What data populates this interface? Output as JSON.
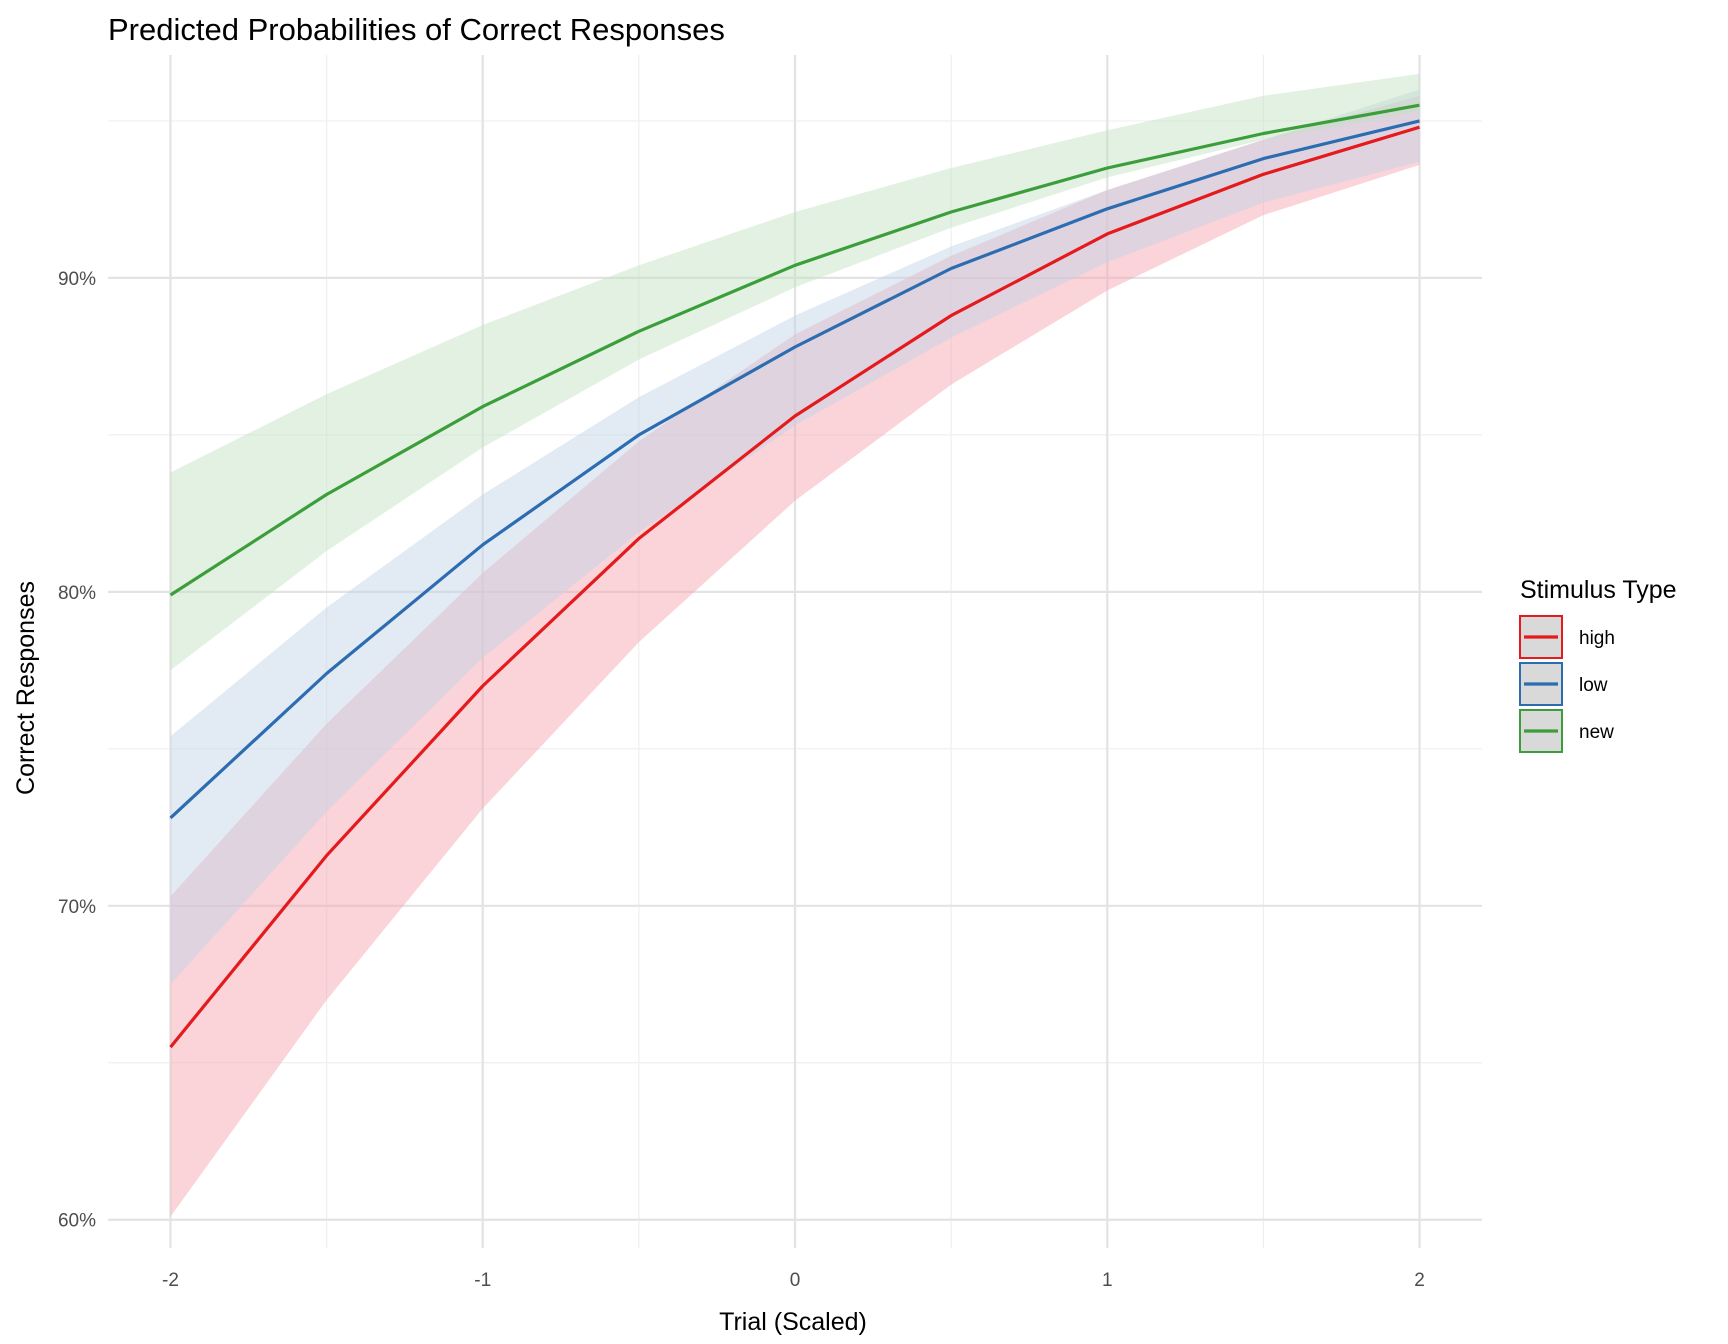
{
  "chart_data": {
    "type": "line",
    "title": "Predicted Probabilities of Correct Responses",
    "xlabel": "Trial (Scaled)",
    "ylabel": "Correct Responses",
    "xlim": [
      -2.2,
      2.2
    ],
    "ylim": [
      0.591,
      0.971
    ],
    "x_ticks": [
      -2,
      -1,
      0,
      1,
      2
    ],
    "x_tick_labels": [
      "-2",
      "-1",
      "0",
      "1",
      "2"
    ],
    "x_minor": [
      -1.5,
      -0.5,
      0.5,
      1.5
    ],
    "y_ticks": [
      0.6,
      0.7,
      0.8,
      0.9
    ],
    "y_tick_labels": [
      "60%",
      "70%",
      "80%",
      "90%"
    ],
    "y_minor": [
      0.65,
      0.75,
      0.85,
      0.95
    ],
    "grid": true,
    "legend": {
      "title": "Stimulus Type",
      "position": "right"
    },
    "x": [
      -2,
      -1.5,
      -1,
      -0.5,
      0,
      0.5,
      1,
      1.5,
      2
    ],
    "series": [
      {
        "name": "high",
        "color": "#e41a1c",
        "fill": "#f4a6ae",
        "values": [
          0.655,
          0.716,
          0.77,
          0.817,
          0.856,
          0.888,
          0.914,
          0.933,
          0.948
        ],
        "lower": [
          0.601,
          0.67,
          0.731,
          0.784,
          0.829,
          0.866,
          0.896,
          0.92,
          0.936
        ],
        "upper": [
          0.703,
          0.758,
          0.806,
          0.848,
          0.882,
          0.907,
          0.928,
          0.944,
          0.958
        ]
      },
      {
        "name": "low",
        "color": "#2c6cb0",
        "fill": "#c3d3e8",
        "values": [
          0.728,
          0.774,
          0.815,
          0.85,
          0.878,
          0.903,
          0.922,
          0.938,
          0.95
        ],
        "lower": [
          0.675,
          0.73,
          0.779,
          0.819,
          0.853,
          0.881,
          0.905,
          0.924,
          0.937
        ],
        "upper": [
          0.754,
          0.795,
          0.831,
          0.862,
          0.888,
          0.91,
          0.928,
          0.944,
          0.96
        ]
      },
      {
        "name": "new",
        "color": "#3b9e3b",
        "fill": "#c3e2c0",
        "values": [
          0.799,
          0.831,
          0.859,
          0.883,
          0.904,
          0.921,
          0.935,
          0.946,
          0.955
        ],
        "lower": [
          0.775,
          0.813,
          0.846,
          0.874,
          0.897,
          0.916,
          0.932,
          0.944,
          0.953
        ],
        "upper": [
          0.838,
          0.863,
          0.885,
          0.904,
          0.921,
          0.935,
          0.947,
          0.958,
          0.965
        ]
      }
    ]
  }
}
